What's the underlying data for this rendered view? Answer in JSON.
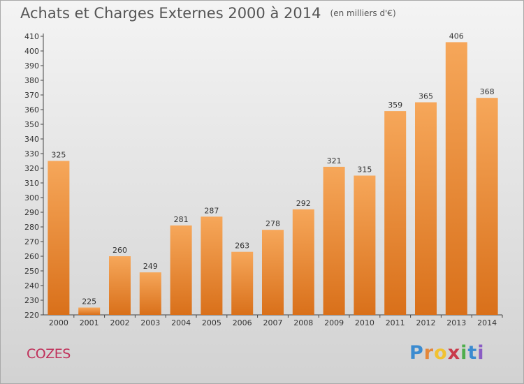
{
  "chart_data": {
    "type": "bar",
    "title": "Achats et Charges Externes 2000 à 2014",
    "subtitle": "(en milliers d'€)",
    "categories": [
      "2000",
      "2001",
      "2002",
      "2003",
      "2004",
      "2005",
      "2006",
      "2007",
      "2008",
      "2009",
      "2010",
      "2011",
      "2012",
      "2013",
      "2014"
    ],
    "values": [
      325,
      225,
      260,
      249,
      281,
      287,
      263,
      278,
      292,
      321,
      315,
      359,
      365,
      406,
      368
    ],
    "ylim": [
      220,
      410
    ],
    "yticks": [
      220,
      230,
      240,
      250,
      260,
      270,
      280,
      290,
      300,
      310,
      320,
      330,
      340,
      350,
      360,
      370,
      380,
      390,
      400,
      410
    ],
    "grid": false,
    "colors": {
      "bar_top": "#f6a75a",
      "bar_bottom": "#d9701a",
      "axis": "#444444"
    }
  },
  "footer": {
    "commune": "COZES",
    "logo_letters": [
      "P",
      "r",
      "o",
      "x",
      "i",
      "t",
      "i"
    ]
  }
}
